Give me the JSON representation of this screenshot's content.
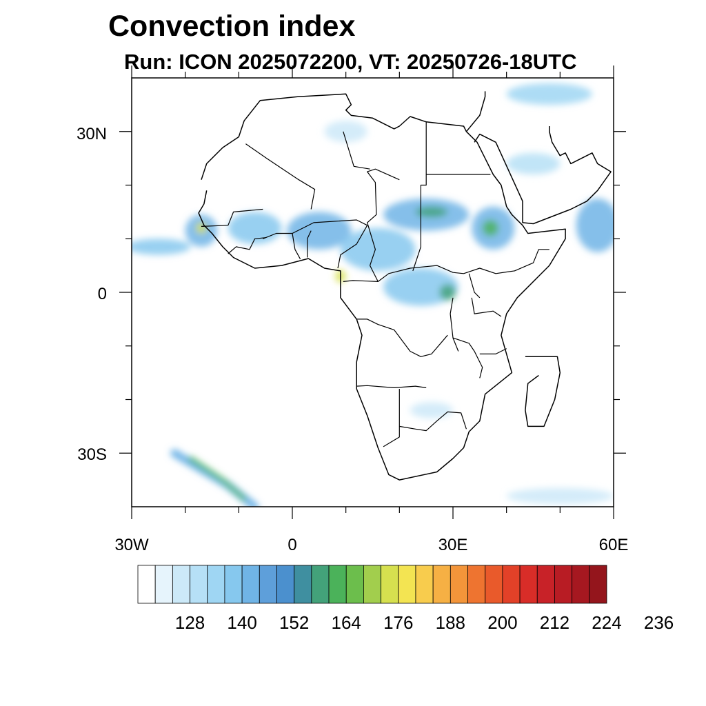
{
  "title": "Convection index",
  "subtitle": "Run: ICON 2025072200,  VT: 20250726-18UTC",
  "map": {
    "region": "Africa",
    "lon_range": [
      -30,
      60
    ],
    "lat_range": [
      -40,
      40
    ],
    "lat_labels": [
      {
        "value": 30,
        "text": "30N"
      },
      {
        "value": 0,
        "text": "0"
      },
      {
        "value": -30,
        "text": "30S"
      }
    ],
    "lon_labels": [
      {
        "value": -30,
        "text": "30W"
      },
      {
        "value": 0,
        "text": "0"
      },
      {
        "value": 30,
        "text": "30E"
      },
      {
        "value": 60,
        "text": "60E"
      }
    ]
  },
  "colorbar": {
    "colors": [
      "#ffffff",
      "#e6f4fc",
      "#cce9f8",
      "#b6e0f6",
      "#9fd6f3",
      "#86c8ee",
      "#70b4e6",
      "#5e9fda",
      "#4b90ce",
      "#3f8fa0",
      "#43a27a",
      "#4bb25a",
      "#6cbe4c",
      "#a2ce4d",
      "#d6e04f",
      "#f3e452",
      "#f8cc4d",
      "#f6b044",
      "#f3953a",
      "#ee7430",
      "#e95a2b",
      "#e24128",
      "#d82d28",
      "#c82228",
      "#b81c24",
      "#a61820",
      "#94151c"
    ],
    "labels": [
      "128",
      "140",
      "152",
      "164",
      "176",
      "188",
      "200",
      "212",
      "224",
      "236"
    ]
  },
  "blobs": [
    {
      "lon": -25,
      "lat": 8.5,
      "rx": 6,
      "ry": 1.5,
      "c": "#86c8ee"
    },
    {
      "lon": -17,
      "lat": 11.5,
      "rx": 3,
      "ry": 3,
      "c": "#70b4e6"
    },
    {
      "lon": -17,
      "lat": 12,
      "rx": 1,
      "ry": 1,
      "c": "#d6e04f"
    },
    {
      "lon": -7,
      "lat": 12,
      "rx": 5,
      "ry": 3,
      "c": "#86c8ee"
    },
    {
      "lon": 5,
      "lat": 11.5,
      "rx": 6,
      "ry": 3.5,
      "c": "#70b4e6"
    },
    {
      "lon": 9,
      "lat": 3,
      "rx": 1,
      "ry": 1.2,
      "c": "#d6e04f"
    },
    {
      "lon": 16,
      "lat": 8,
      "rx": 7,
      "ry": 4,
      "c": "#86c8ee"
    },
    {
      "lon": 25,
      "lat": 14.5,
      "rx": 8,
      "ry": 3,
      "c": "#70b4e6"
    },
    {
      "lon": 26,
      "lat": 15,
      "rx": 3,
      "ry": 1,
      "c": "#43a27a"
    },
    {
      "lon": 37.5,
      "lat": 12,
      "rx": 4,
      "ry": 4,
      "c": "#70b4e6"
    },
    {
      "lon": 37,
      "lat": 12,
      "rx": 1.5,
      "ry": 1.5,
      "c": "#4bb25a"
    },
    {
      "lon": 24,
      "lat": 1,
      "rx": 7,
      "ry": 3.5,
      "c": "#86c8ee"
    },
    {
      "lon": 29,
      "lat": 0,
      "rx": 1.5,
      "ry": 1.5,
      "c": "#43a27a"
    },
    {
      "lon": 57,
      "lat": 12.5,
      "rx": 4,
      "ry": 5,
      "c": "#70b4e6"
    },
    {
      "lon": 45,
      "lat": 24,
      "rx": 5,
      "ry": 2,
      "c": "#b6e0f6"
    },
    {
      "lon": 10,
      "lat": 30,
      "rx": 4,
      "ry": 2,
      "c": "#cce9f8"
    },
    {
      "lon": 48,
      "lat": 37,
      "rx": 8,
      "ry": 2,
      "c": "#9fd6f3"
    },
    {
      "lon": 50,
      "lat": -38,
      "rx": 10,
      "ry": 1.5,
      "c": "#cce9f8"
    },
    {
      "lon": 26,
      "lat": -22,
      "rx": 4,
      "ry": 1.5,
      "c": "#cce9f8"
    }
  ],
  "bands": [
    {
      "points": [
        [
          -22,
          -30
        ],
        [
          -12,
          -36
        ],
        [
          -7,
          -40
        ]
      ],
      "w": 1.5,
      "c": "#70b4e6"
    },
    {
      "points": [
        [
          -19,
          -31
        ],
        [
          -13,
          -35
        ],
        [
          -9,
          -38.5
        ]
      ],
      "w": 0.8,
      "c": "#4bb25a"
    }
  ],
  "outlines": [
    [
      [
        -17,
        21
      ],
      [
        -16,
        24
      ],
      [
        -13,
        27
      ],
      [
        -10,
        29
      ],
      [
        -9,
        32
      ],
      [
        -6,
        35.8
      ],
      [
        1,
        36.5
      ],
      [
        10,
        37
      ],
      [
        11,
        35
      ],
      [
        10,
        34
      ],
      [
        11,
        33
      ],
      [
        15,
        32.5
      ],
      [
        19,
        30.5
      ],
      [
        20,
        31
      ],
      [
        22,
        32.8
      ],
      [
        25,
        31.8
      ],
      [
        32,
        31
      ],
      [
        32.5,
        30
      ],
      [
        34.5,
        28
      ],
      [
        36,
        25
      ],
      [
        37.5,
        22
      ],
      [
        39,
        20
      ],
      [
        40,
        16
      ],
      [
        41,
        14.5
      ],
      [
        43,
        12.5
      ],
      [
        44,
        11
      ],
      [
        51,
        11.8
      ],
      [
        51,
        10
      ],
      [
        48,
        5
      ],
      [
        42,
        -1
      ],
      [
        40,
        -4
      ],
      [
        39,
        -8
      ],
      [
        41,
        -15
      ],
      [
        36,
        -19
      ],
      [
        35,
        -24
      ],
      [
        33,
        -26
      ],
      [
        32,
        -29
      ],
      [
        30,
        -31
      ],
      [
        27,
        -33.5
      ],
      [
        20,
        -35
      ],
      [
        18,
        -34
      ],
      [
        16,
        -29
      ],
      [
        14,
        -23
      ],
      [
        12,
        -18
      ],
      [
        12,
        -13
      ],
      [
        13,
        -8
      ],
      [
        12,
        -5
      ],
      [
        9,
        -1
      ],
      [
        9,
        4
      ],
      [
        6,
        4.5
      ],
      [
        3,
        6.3
      ],
      [
        -2,
        5
      ],
      [
        -7,
        4.5
      ],
      [
        -11,
        6.5
      ],
      [
        -13,
        8.5
      ],
      [
        -15,
        11
      ],
      [
        -16.5,
        12.5
      ],
      [
        -17.5,
        14.8
      ],
      [
        -16.5,
        16.5
      ],
      [
        -16,
        19
      ]
    ],
    [
      [
        32.5,
        30
      ],
      [
        35,
        33
      ],
      [
        36,
        36.5
      ],
      [
        36,
        37.5
      ]
    ],
    [
      [
        34,
        28
      ],
      [
        35,
        29.5
      ],
      [
        38,
        28
      ],
      [
        43,
        17
      ],
      [
        43,
        13
      ],
      [
        45,
        12.8
      ],
      [
        52,
        15.5
      ],
      [
        55,
        17
      ],
      [
        57,
        19
      ],
      [
        59.5,
        22.5
      ],
      [
        57,
        24
      ],
      [
        56,
        26
      ],
      [
        52,
        24
      ],
      [
        51,
        26
      ],
      [
        50,
        25.5
      ],
      [
        48.5,
        28
      ],
      [
        48,
        30
      ],
      [
        48,
        31
      ]
    ],
    [
      [
        43.5,
        -12
      ],
      [
        49.5,
        -12
      ],
      [
        50,
        -15
      ],
      [
        49,
        -20
      ],
      [
        47,
        -25
      ],
      [
        44,
        -25
      ],
      [
        43.5,
        -22
      ],
      [
        44,
        -17
      ],
      [
        46,
        -15.5
      ]
    ]
  ],
  "borders": [
    [
      [
        -8.7,
        27.7
      ],
      [
        -4.8,
        25
      ],
      [
        1.2,
        21
      ],
      [
        4.2,
        19.2
      ],
      [
        3.5,
        15.5
      ]
    ],
    [
      [
        9.5,
        30
      ],
      [
        11.5,
        23.5
      ],
      [
        14.5,
        23
      ]
    ],
    [
      [
        25,
        31.8
      ],
      [
        25,
        22
      ],
      [
        37,
        22
      ]
    ],
    [
      [
        25,
        22
      ],
      [
        25,
        20
      ],
      [
        24,
        20
      ],
      [
        24,
        8.5
      ],
      [
        22.5,
        4
      ]
    ],
    [
      [
        20,
        21
      ],
      [
        15.5,
        23
      ],
      [
        14,
        22.5
      ],
      [
        15.5,
        20.5
      ],
      [
        15.7,
        14.5
      ],
      [
        14,
        13
      ],
      [
        15.5,
        8
      ],
      [
        14.5,
        5
      ],
      [
        16,
        2
      ]
    ],
    [
      [
        -5.5,
        10
      ],
      [
        -3,
        11
      ],
      [
        0,
        11
      ],
      [
        4,
        13
      ],
      [
        12,
        13.5
      ],
      [
        14,
        12.5
      ]
    ],
    [
      [
        -17,
        12.3
      ],
      [
        -12,
        12.5
      ],
      [
        -11,
        15
      ],
      [
        -5.5,
        15.5
      ]
    ],
    [
      [
        -12,
        7.2
      ],
      [
        -10.5,
        8.5
      ],
      [
        -8,
        8
      ],
      [
        -7,
        10
      ],
      [
        -5,
        10.2
      ]
    ],
    [
      [
        0,
        11
      ],
      [
        0.5,
        8
      ],
      [
        1.5,
        6.2
      ]
    ],
    [
      [
        2.8,
        6.5
      ],
      [
        2.8,
        10
      ],
      [
        3.5,
        11.5
      ]
    ],
    [
      [
        8.5,
        4.5
      ],
      [
        9,
        7
      ],
      [
        12,
        9
      ],
      [
        14,
        12.5
      ]
    ],
    [
      [
        9.5,
        2
      ],
      [
        11.3,
        2.2
      ],
      [
        14,
        2.1
      ],
      [
        16,
        2
      ],
      [
        18,
        3.5
      ],
      [
        22,
        4.5
      ],
      [
        27,
        5
      ],
      [
        30,
        3.7
      ],
      [
        32,
        3.5
      ],
      [
        35,
        4.5
      ],
      [
        38,
        3.5
      ],
      [
        40,
        3.8
      ],
      [
        41.5,
        4
      ],
      [
        45,
        5.5
      ],
      [
        46,
        8
      ],
      [
        48,
        8
      ]
    ],
    [
      [
        30,
        -1
      ],
      [
        29.5,
        -4
      ],
      [
        30,
        -8.5
      ],
      [
        31,
        -11
      ]
    ],
    [
      [
        12,
        -5
      ],
      [
        14,
        -5
      ],
      [
        16,
        -6
      ],
      [
        19,
        -7
      ],
      [
        22,
        -11
      ],
      [
        24,
        -12
      ],
      [
        26,
        -11.5
      ],
      [
        29,
        -8
      ]
    ],
    [
      [
        12,
        -17.5
      ],
      [
        14,
        -17.4
      ],
      [
        19,
        -17.8
      ],
      [
        23,
        -17.5
      ],
      [
        25,
        -17.8
      ]
    ],
    [
      [
        20,
        -18
      ],
      [
        20,
        -22
      ],
      [
        20,
        -27
      ],
      [
        17,
        -28.8
      ]
    ],
    [
      [
        20,
        -25
      ],
      [
        23,
        -25.5
      ],
      [
        25,
        -25.8
      ],
      [
        27,
        -24
      ],
      [
        29,
        -22.3
      ],
      [
        31.5,
        -22.5
      ],
      [
        32.5,
        -25.5
      ]
    ],
    [
      [
        30,
        -8.5
      ],
      [
        33,
        -9.5
      ],
      [
        34,
        -11
      ],
      [
        35.5,
        -14
      ],
      [
        35,
        -16
      ]
    ],
    [
      [
        33.5,
        -1
      ],
      [
        34,
        -4
      ],
      [
        37.5,
        -3.5
      ],
      [
        39,
        -4.5
      ]
    ],
    [
      [
        40,
        -10.5
      ],
      [
        38,
        -11.5
      ],
      [
        35,
        -11.5
      ]
    ],
    [
      [
        33,
        3.5
      ],
      [
        34,
        0
      ],
      [
        35,
        -1
      ]
    ]
  ]
}
